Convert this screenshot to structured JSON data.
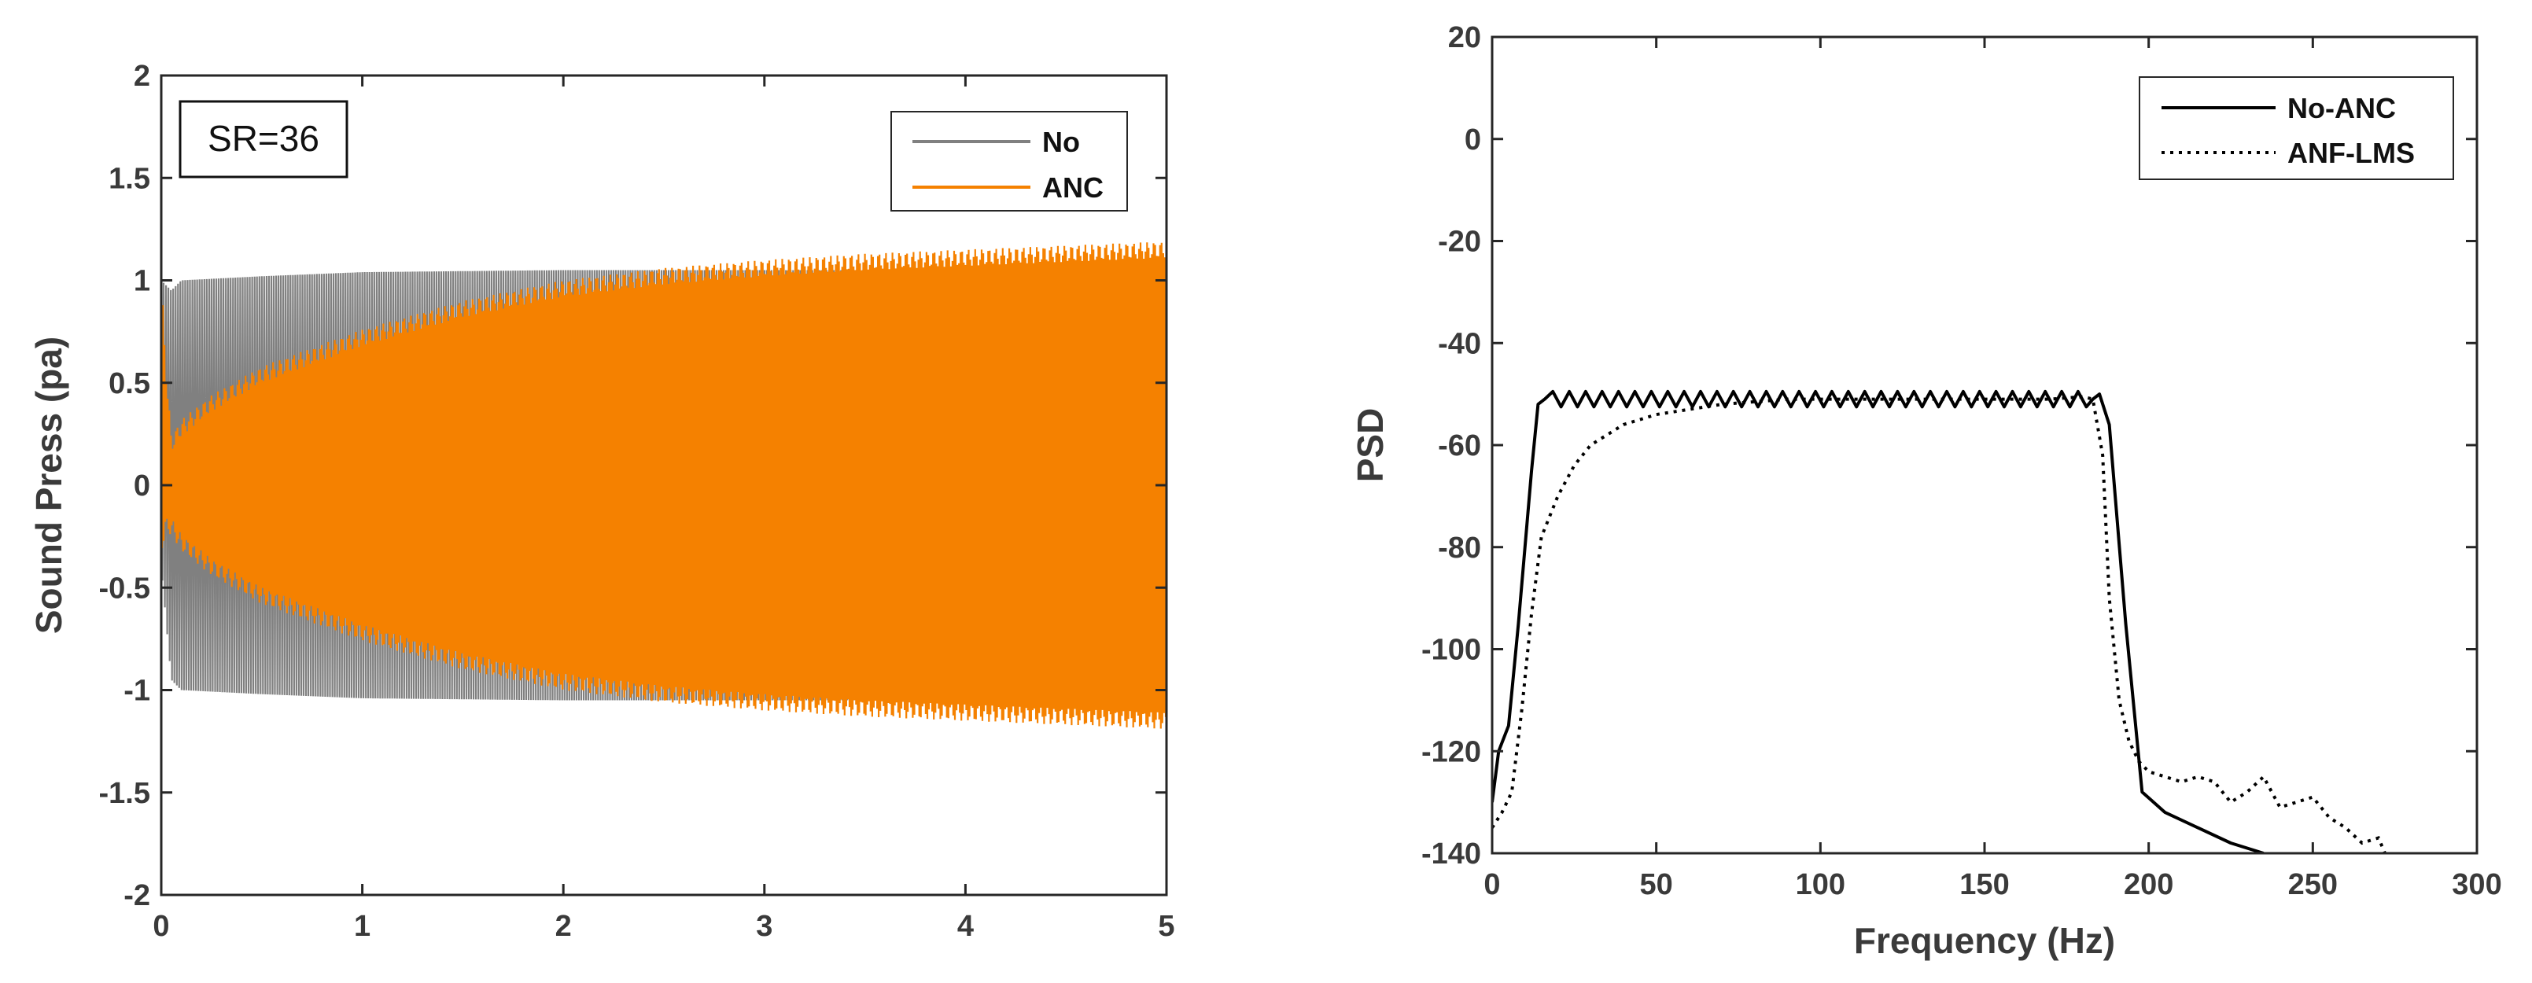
{
  "chart_data": [
    {
      "type": "line",
      "title": "",
      "xlabel": "",
      "ylabel": "Sound Press (pa)",
      "xlim": [
        0,
        5
      ],
      "ylim": [
        -2,
        2
      ],
      "xticks": [
        0,
        1,
        2,
        3,
        4,
        5
      ],
      "xtick_labels": [
        "0",
        "1",
        "2",
        "3",
        "4",
        "5"
      ],
      "yticks": [
        2,
        1.5,
        1,
        0.5,
        0,
        -0.5,
        -1,
        -1.5,
        -2
      ],
      "ytick_labels": [
        "2",
        "1.5",
        "1",
        "0.5",
        "0",
        "-0.5",
        "-1",
        "-1.5",
        "-2"
      ],
      "grid": false,
      "legend_position": "top-right",
      "annotation": "SR=36",
      "series": [
        {
          "name": "No",
          "color": "#808080",
          "kind": "oscillation-envelope",
          "x": [
            0,
            0.05,
            0.1,
            0.5,
            1.0,
            2.0,
            3.0,
            4.0,
            5.0
          ],
          "upper": [
            1.0,
            0.95,
            1.0,
            1.02,
            1.04,
            1.05,
            1.05,
            1.05,
            1.05
          ],
          "lower": [
            -0.4,
            -0.95,
            -1.0,
            -1.02,
            -1.04,
            -1.05,
            -1.05,
            -1.05,
            -1.05
          ]
        },
        {
          "name": "ANC",
          "color": "#f58100",
          "kind": "oscillation-envelope",
          "x": [
            0,
            0.02,
            0.05,
            0.1,
            0.25,
            0.5,
            1.0,
            1.5,
            2.0,
            2.5,
            3.0,
            3.5,
            4.0,
            4.5,
            5.0
          ],
          "upper": [
            1.0,
            0.6,
            0.2,
            0.28,
            0.4,
            0.54,
            0.72,
            0.86,
            0.96,
            1.02,
            1.06,
            1.09,
            1.11,
            1.13,
            1.15
          ],
          "lower": [
            -0.3,
            -0.2,
            -0.2,
            -0.28,
            -0.4,
            -0.54,
            -0.72,
            -0.86,
            -0.96,
            -1.02,
            -1.06,
            -1.09,
            -1.11,
            -1.13,
            -1.15
          ]
        }
      ]
    },
    {
      "type": "line",
      "title": "",
      "xlabel": "Frequency (Hz)",
      "ylabel": "PSD",
      "xlim": [
        0,
        300
      ],
      "ylim": [
        -140,
        20
      ],
      "xticks": [
        0,
        50,
        100,
        150,
        200,
        250,
        300
      ],
      "xtick_labels": [
        "0",
        "50",
        "100",
        "150",
        "200",
        "250",
        "300"
      ],
      "yticks": [
        20,
        0,
        -20,
        -40,
        -60,
        -80,
        -100,
        -120,
        -140
      ],
      "ytick_labels": [
        "20",
        "0",
        "-20",
        "-40",
        "-60",
        "-80",
        "-100",
        "-120",
        "-140"
      ],
      "grid": false,
      "legend_position": "top-right",
      "series": [
        {
          "name": "No-ANC",
          "style": "solid",
          "color": "#000000",
          "x": [
            0,
            2,
            5,
            8,
            12,
            14,
            16,
            183,
            185,
            188,
            193,
            198,
            205,
            215,
            225,
            235
          ],
          "y": [
            -130,
            -120,
            -115,
            -95,
            -65,
            -52,
            -51,
            -51,
            -50,
            -56,
            -95,
            -128,
            -132,
            -135,
            -138,
            -140
          ],
          "ripple": {
            "from": 16,
            "to": 182,
            "step": 2.5,
            "amplitude": 1.5
          }
        },
        {
          "name": "ANF-LMS",
          "style": "dotted",
          "color": "#000000",
          "x": [
            0,
            3,
            6,
            9,
            12,
            15,
            20,
            25,
            30,
            40,
            50,
            60,
            70,
            80,
            90,
            100,
            110,
            120,
            130,
            140,
            150,
            160,
            170,
            180,
            183,
            186,
            188,
            191,
            194,
            197,
            200,
            205,
            210,
            215,
            220,
            225,
            230,
            235,
            240,
            245,
            250,
            255,
            260,
            265,
            270,
            272
          ],
          "y": [
            -135,
            -132,
            -128,
            -112,
            -93,
            -78,
            -70,
            -64,
            -60,
            -56,
            -54,
            -53,
            -52,
            -51.5,
            -51,
            -51,
            -51,
            -51,
            -51,
            -51,
            -51,
            -51,
            -51,
            -50.5,
            -51,
            -62,
            -90,
            -110,
            -118,
            -122,
            -124,
            -125,
            -126,
            -125,
            -126,
            -130,
            -128,
            -125,
            -131,
            -130,
            -129,
            -133,
            -135,
            -138,
            -137,
            -140
          ]
        }
      ]
    }
  ]
}
